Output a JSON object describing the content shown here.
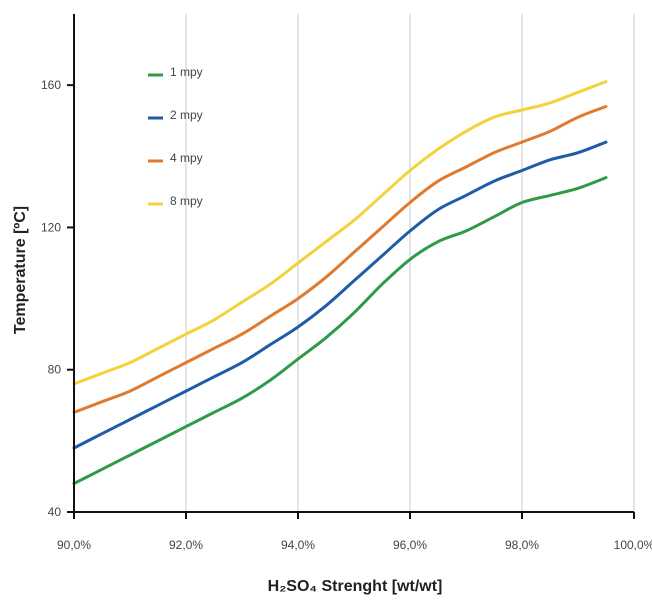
{
  "chart_data": {
    "type": "line",
    "xlabel": "H₂SO₄ Strenght [wt/wt]",
    "ylabel": "Temperature [ºC]",
    "xlim": [
      90.0,
      100.0
    ],
    "ylim": [
      40,
      180
    ],
    "x_ticks": [
      90,
      92,
      94,
      96,
      98,
      100
    ],
    "x_tick_labels": [
      "90,0%",
      "92,0%",
      "94,0%",
      "96,0%",
      "98,0%",
      "100,0%"
    ],
    "y_ticks": [
      40,
      80,
      120,
      160
    ],
    "y_tick_labels": [
      "40",
      "80",
      "120",
      "160"
    ],
    "grid": "vertical",
    "legend_position": "top-left",
    "series": [
      {
        "name": "1 mpy",
        "color": "#2e9b48",
        "x": [
          90.0,
          90.5,
          91.0,
          91.5,
          92.0,
          92.5,
          93.0,
          93.5,
          94.0,
          94.5,
          95.0,
          95.5,
          96.0,
          96.5,
          97.0,
          97.5,
          98.0,
          98.5,
          99.0,
          99.5
        ],
        "y": [
          48,
          52,
          56,
          60,
          64,
          68,
          72,
          77,
          83,
          89,
          96,
          104,
          111,
          116,
          119,
          123,
          127,
          129,
          131,
          134
        ]
      },
      {
        "name": "2 mpy",
        "color": "#1f5ca8",
        "x": [
          90.0,
          90.5,
          91.0,
          91.5,
          92.0,
          92.5,
          93.0,
          93.5,
          94.0,
          94.5,
          95.0,
          95.5,
          96.0,
          96.5,
          97.0,
          97.5,
          98.0,
          98.5,
          99.0,
          99.5
        ],
        "y": [
          58,
          62,
          66,
          70,
          74,
          78,
          82,
          87,
          92,
          98,
          105,
          112,
          119,
          125,
          129,
          133,
          136,
          139,
          141,
          144
        ]
      },
      {
        "name": "4 mpy",
        "color": "#e07a2e",
        "x": [
          90.0,
          90.5,
          91.0,
          91.5,
          92.0,
          92.5,
          93.0,
          93.5,
          94.0,
          94.5,
          95.0,
          95.5,
          96.0,
          96.5,
          97.0,
          97.5,
          98.0,
          98.5,
          99.0,
          99.5
        ],
        "y": [
          68,
          71,
          74,
          78,
          82,
          86,
          90,
          95,
          100,
          106,
          113,
          120,
          127,
          133,
          137,
          141,
          144,
          147,
          151,
          154
        ]
      },
      {
        "name": "8 mpy",
        "color": "#f2d33c",
        "x": [
          90.0,
          90.5,
          91.0,
          91.5,
          92.0,
          92.5,
          93.0,
          93.5,
          94.0,
          94.5,
          95.0,
          95.5,
          96.0,
          96.5,
          97.0,
          97.5,
          98.0,
          98.5,
          99.0,
          99.5
        ],
        "y": [
          76,
          79,
          82,
          86,
          90,
          94,
          99,
          104,
          110,
          116,
          122,
          129,
          136,
          142,
          147,
          151,
          153,
          155,
          158,
          161
        ]
      }
    ]
  }
}
